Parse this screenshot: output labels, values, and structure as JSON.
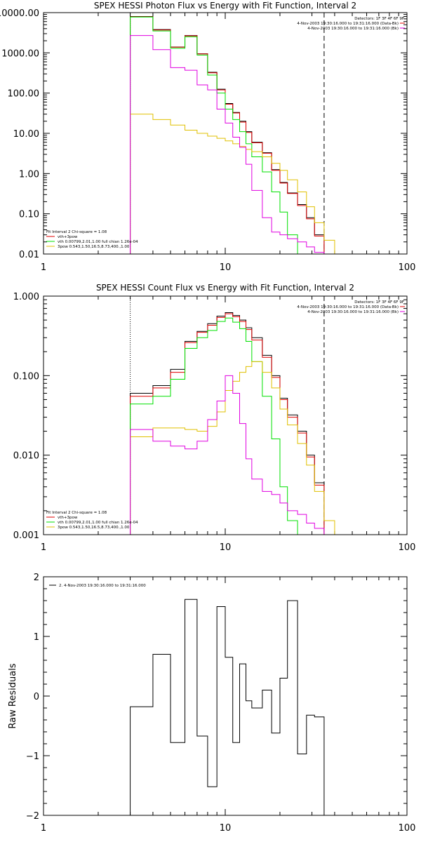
{
  "colors": {
    "total": "#000000",
    "sum": "#e00000",
    "vth": "#00e000",
    "pow": "#e0c000",
    "bkg": "#e000e0"
  },
  "chart_data": [
    {
      "type": "line",
      "title": "SPEX HESSI Photon Flux vs Energy with Fit Function, Interval 2",
      "xscale": "log",
      "yscale": "log",
      "xlim": [
        1,
        100
      ],
      "ylim": [
        0.01,
        10000
      ],
      "xticks": [
        {
          "v": 1,
          "label": "1"
        },
        {
          "v": 10,
          "label": "10"
        },
        {
          "v": 100,
          "label": "100"
        }
      ],
      "yticks": [
        {
          "v": 10000,
          "label": "10000.00"
        },
        {
          "v": 1000,
          "label": "1000.00"
        },
        {
          "v": 100,
          "label": "100.00"
        },
        {
          "v": 10,
          "label": "10.00"
        },
        {
          "v": 1,
          "label": "1.00"
        },
        {
          "v": 0.1,
          "label": "0.10"
        },
        {
          "v": 0.01,
          "label": "0.01"
        }
      ],
      "info_lines": [
        "Detectors: 1F 3F 4F 6F 9F",
        "4-Nov-2003 19:30:16.000 to 19:31:16.000 (Data-Bk)",
        "4-Nov-2003 19:30:16.000 to 19:31:16.000 (Bk)"
      ],
      "legend": [
        "Fit Interval 2   Chi-square = 1.08",
        "vth+3pow",
        "vth 0.00799,2.01,1.00  full chian 1.26e-04",
        "3pow 0.543,1.50,16.5,8.73,400.,1.00"
      ],
      "vlines": [
        {
          "x": 3,
          "style": "dotted"
        },
        {
          "x": 35,
          "style": "dashed"
        }
      ],
      "bin_edges": [
        3,
        4,
        5,
        6,
        7,
        8,
        9,
        10,
        11,
        12,
        13,
        14,
        16,
        18,
        20,
        22,
        25,
        28,
        31,
        35,
        40
      ],
      "series": [
        {
          "name": "total",
          "color": "#000000",
          "values": [
            8000,
            3800,
            1400,
            2700,
            950,
            330,
            125,
            55,
            33,
            20,
            11,
            6,
            3.3,
            1.25,
            0.6,
            0.33,
            0.17,
            0.08,
            0.03
          ]
        },
        {
          "name": "vth+3pow",
          "color": "#e00000",
          "values": [
            7900,
            3700,
            1380,
            2650,
            940,
            320,
            120,
            53,
            32,
            19,
            10.5,
            5.8,
            3.2,
            1.2,
            0.58,
            0.32,
            0.16,
            0.075,
            0.028
          ]
        },
        {
          "name": "vth",
          "color": "#00e000",
          "values": [
            7800,
            3500,
            1300,
            2500,
            880,
            280,
            100,
            40,
            22,
            11,
            5.5,
            2.6,
            1.1,
            0.35,
            0.11,
            0.03,
            0.008
          ]
        },
        {
          "name": "3pow",
          "color": "#e0c000",
          "values": [
            30,
            22,
            16,
            12,
            10,
            8.5,
            7.5,
            6.5,
            5.5,
            4.7,
            4,
            3.5,
            2.6,
            1.8,
            1.2,
            0.7,
            0.35,
            0.15,
            0.06,
            0.022,
            0.009
          ]
        },
        {
          "name": "bkg",
          "color": "#e000e0",
          "values": [
            2700,
            1200,
            430,
            370,
            160,
            120,
            40,
            18,
            8,
            4.5,
            1.7,
            0.38,
            0.08,
            0.035,
            0.03,
            0.024,
            0.02,
            0.015,
            0.011
          ]
        }
      ]
    },
    {
      "type": "line",
      "title": "SPEX HESSI Count Flux vs Energy with Fit Function, Interval 2",
      "xscale": "log",
      "yscale": "log",
      "xlim": [
        1,
        100
      ],
      "ylim": [
        0.001,
        1
      ],
      "xticks": [
        {
          "v": 1,
          "label": "1"
        },
        {
          "v": 10,
          "label": "10"
        },
        {
          "v": 100,
          "label": "100"
        }
      ],
      "yticks": [
        {
          "v": 1,
          "label": "1.000"
        },
        {
          "v": 0.1,
          "label": "0.100"
        },
        {
          "v": 0.01,
          "label": "0.010"
        },
        {
          "v": 0.001,
          "label": "0.001"
        }
      ],
      "info_lines": [
        "Detectors: 1F 3F 4F 6F 9F",
        "4-Nov-2003 19:30:16.000 to 19:31:16.000 (Data-Bk)",
        "4-Nov-2003 19:30:16.000 to 19:31:16.000 (Bk)"
      ],
      "legend": [
        "Fit Interval 2   Chi-square = 1.08",
        "vth+3pow",
        "vth 0.00799,2.01,1.00  full chian 1.26e-04",
        "3pow 0.543,1.50,16.5,8.73,400.,1.00"
      ],
      "vlines": [
        {
          "x": 3,
          "style": "dotted"
        },
        {
          "x": 35,
          "style": "dashed"
        }
      ],
      "bin_edges": [
        3,
        4,
        5,
        6,
        7,
        8,
        9,
        10,
        11,
        12,
        13,
        14,
        16,
        18,
        20,
        22,
        25,
        28,
        31,
        35,
        40
      ],
      "series": [
        {
          "name": "total",
          "color": "#000000",
          "values": [
            0.06,
            0.075,
            0.12,
            0.27,
            0.36,
            0.45,
            0.56,
            0.62,
            0.57,
            0.5,
            0.4,
            0.3,
            0.18,
            0.1,
            0.052,
            0.032,
            0.02,
            0.01,
            0.0045
          ]
        },
        {
          "name": "vth+3pow",
          "color": "#e00000",
          "values": [
            0.055,
            0.07,
            0.11,
            0.26,
            0.35,
            0.43,
            0.54,
            0.6,
            0.55,
            0.48,
            0.38,
            0.28,
            0.17,
            0.095,
            0.05,
            0.03,
            0.019,
            0.0095,
            0.0042
          ]
        },
        {
          "name": "vth",
          "color": "#00e000",
          "values": [
            0.044,
            0.055,
            0.09,
            0.22,
            0.3,
            0.37,
            0.48,
            0.53,
            0.47,
            0.39,
            0.27,
            0.15,
            0.055,
            0.016,
            0.004,
            0.0015
          ]
        },
        {
          "name": "3pow",
          "color": "#e0c000",
          "values": [
            0.017,
            0.022,
            0.022,
            0.021,
            0.02,
            0.023,
            0.035,
            0.065,
            0.085,
            0.11,
            0.13,
            0.15,
            0.11,
            0.07,
            0.038,
            0.024,
            0.014,
            0.0075,
            0.0035,
            0.0015,
            0.0008
          ]
        },
        {
          "name": "bkg",
          "color": "#e000e0",
          "values": [
            0.021,
            0.015,
            0.013,
            0.012,
            0.015,
            0.028,
            0.048,
            0.1,
            0.06,
            0.025,
            0.009,
            0.005,
            0.0035,
            0.0032,
            0.0025,
            0.002,
            0.0018,
            0.0014,
            0.0012
          ]
        }
      ]
    },
    {
      "type": "line",
      "title": "",
      "ylabel": "Raw Residuals",
      "xscale": "log",
      "yscale": "linear",
      "xlim": [
        1,
        100
      ],
      "ylim": [
        -2,
        2
      ],
      "xticks": [
        {
          "v": 1,
          "label": "1"
        },
        {
          "v": 10,
          "label": "10"
        },
        {
          "v": 100,
          "label": "100"
        }
      ],
      "yticks": [
        {
          "v": 2,
          "label": "2"
        },
        {
          "v": 1,
          "label": "1"
        },
        {
          "v": 0,
          "label": "0"
        },
        {
          "v": -1,
          "label": "−1"
        },
        {
          "v": -2,
          "label": "−2"
        }
      ],
      "legend": [
        "2.  4-Nov-2003 19:30:16.000 to 19:31:16.000"
      ],
      "bin_edges": [
        3,
        4,
        5,
        6,
        7,
        8,
        9,
        10,
        11,
        12,
        13,
        14,
        16,
        18,
        20,
        22,
        25,
        28,
        31,
        35
      ],
      "series": [
        {
          "name": "2.  4-Nov-2003 19:30:16.000 to 19:31:16.000",
          "color": "#000000",
          "values": [
            -0.18,
            0.7,
            -0.78,
            1.62,
            -0.67,
            -1.52,
            1.5,
            0.65,
            -0.78,
            0.54,
            -0.08,
            -0.2,
            0.1,
            -0.62,
            0.3,
            1.6,
            -0.97,
            -0.32,
            -0.35
          ]
        }
      ]
    }
  ]
}
